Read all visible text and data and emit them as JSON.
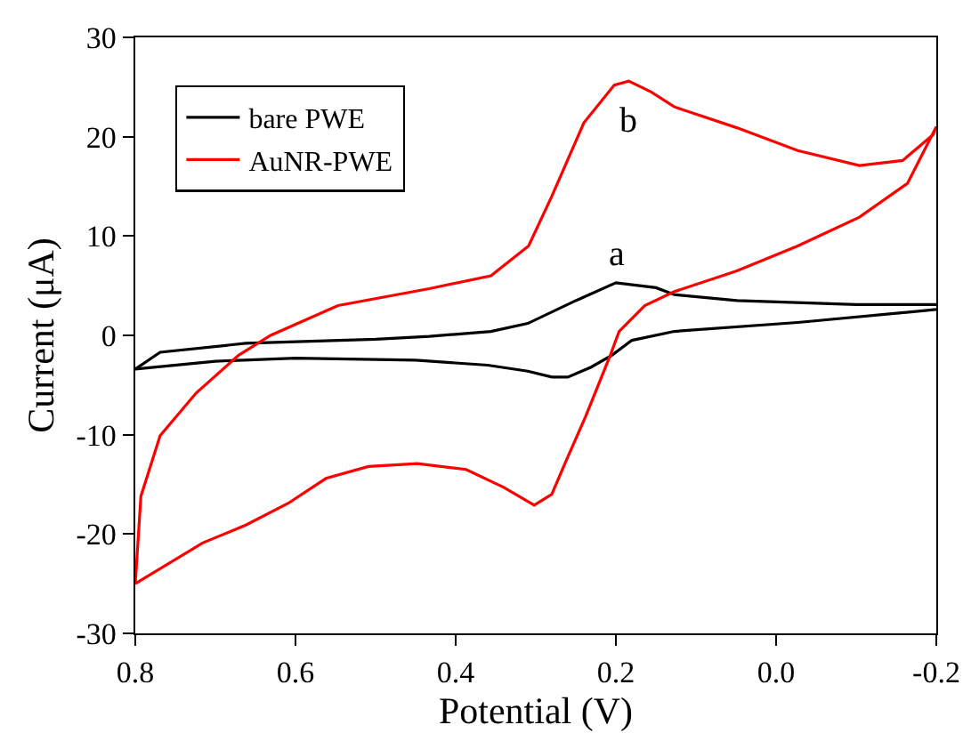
{
  "chart_data": {
    "type": "line",
    "xlabel": "Potential (V)",
    "ylabel": "Current (μA)",
    "xlim": [
      0.8,
      -0.2
    ],
    "xticks": [
      0.8,
      0.6,
      0.4,
      0.2,
      {
        "value": 0,
        "label": "0.0"
      },
      -0.2
    ],
    "ylim": [
      -30,
      30
    ],
    "yticks": [
      -30,
      -20,
      -10,
      0,
      10,
      20,
      30
    ],
    "grid": false,
    "legend": "top left",
    "marker": "none",
    "line_style": "solid",
    "annotations": [
      {
        "text": "a",
        "x": 0.2,
        "y": 5.3
      },
      {
        "text": "b",
        "x": 0.184,
        "y": 25.6
      }
    ],
    "series": [
      {
        "name": "bare PWE",
        "color": "#000000",
        "x": [
          0.8,
          0.769,
          0.662,
          0.5,
          0.433,
          0.356,
          0.31,
          0.25,
          0.2,
          0.15,
          0.127,
          0.049,
          -0.1,
          -0.2
        ],
        "values": [
          -3.4,
          -1.7,
          -0.8,
          -0.4,
          -0.1,
          0.4,
          1.2,
          3.5,
          5.3,
          4.8,
          4.1,
          3.5,
          3.1,
          3.1
        ]
      },
      {
        "color": "#000000",
        "x": [
          -0.2,
          -0.027,
          0.127,
          0.18,
          0.205,
          0.231,
          0.26,
          0.28,
          0.31,
          0.36,
          0.45,
          0.6,
          0.7,
          0.8
        ],
        "values": [
          2.6,
          1.3,
          0.4,
          -0.5,
          -2,
          -3.2,
          -4.2,
          -4.2,
          -3.6,
          -3,
          -2.5,
          -2.3,
          -2.6,
          -3.4
        ]
      },
      {
        "name": "AuNR-PWE",
        "color": "#ff0000",
        "x": [
          0.8,
          0.793,
          0.769,
          0.724,
          0.671,
          0.631,
          0.547,
          0.433,
          0.356,
          0.309,
          0.28,
          0.24,
          0.202,
          0.184,
          0.156,
          0.127,
          0.049,
          -0.027,
          -0.104,
          -0.158,
          -0.196,
          -0.2
        ],
        "values": [
          -25,
          -16.2,
          -10.1,
          -5.8,
          -2,
          0,
          3,
          4.7,
          6,
          9,
          14,
          21.4,
          25.2,
          25.6,
          24.5,
          23,
          20.9,
          18.6,
          17.1,
          17.6,
          20.2,
          21
        ]
      },
      {
        "color": "#ff0000",
        "x": [
          -0.2,
          -0.164,
          -0.104,
          -0.027,
          0.049,
          0.127,
          0.164,
          0.196,
          0.207,
          0.238,
          0.262,
          0.28,
          0.302,
          0.34,
          0.387,
          0.448,
          0.509,
          0.562,
          0.609,
          0.662,
          0.716,
          0.8
        ],
        "values": [
          21,
          15.3,
          11.9,
          9,
          6.5,
          4.4,
          3,
          0.4,
          -2,
          -8.2,
          -12.6,
          -16,
          -17.1,
          -15.3,
          -13.5,
          -12.9,
          -13.2,
          -14.4,
          -16.9,
          -19.1,
          -20.9,
          -25
        ]
      }
    ]
  }
}
